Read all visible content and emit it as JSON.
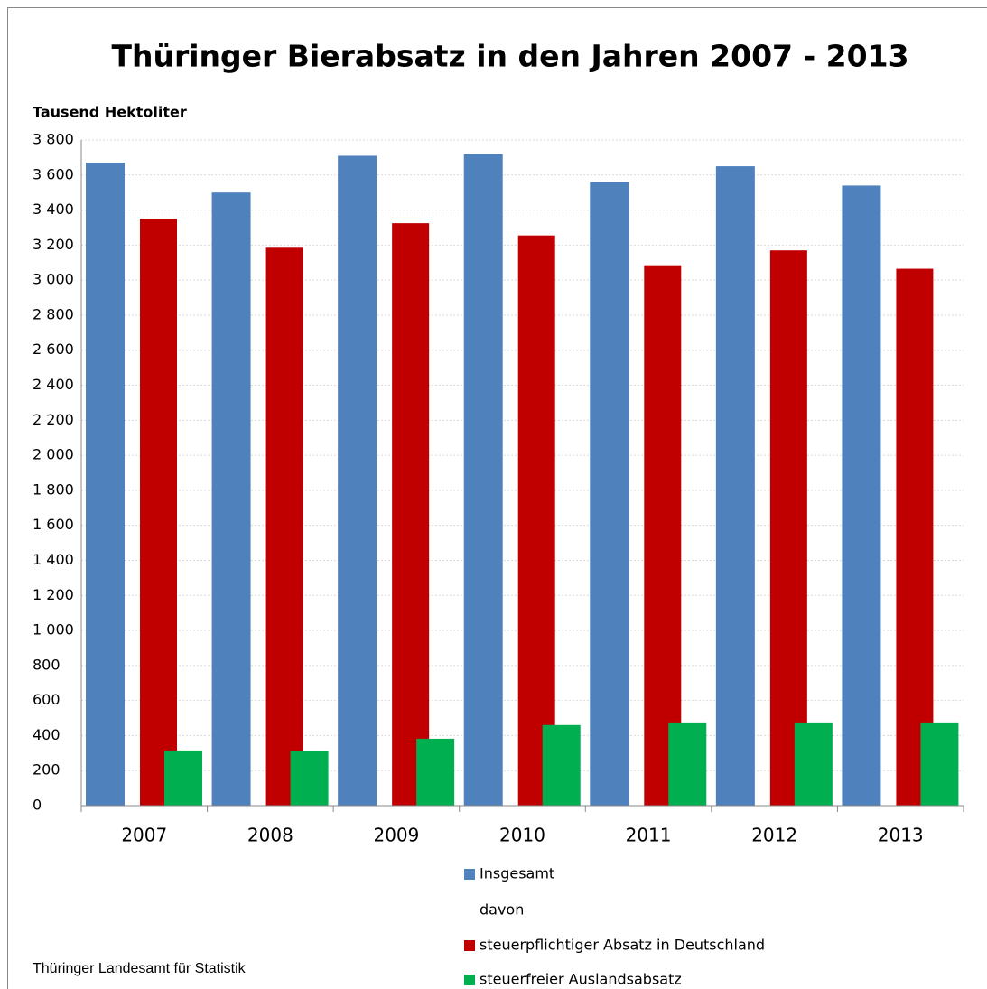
{
  "chart_data": {
    "type": "bar",
    "title": "Thüringer Bierabsatz in den Jahren 2007 - 2013",
    "y_label": "Tausend Hektoliter",
    "source": "Thüringer Landesamt für Statistik",
    "legend_note": "davon",
    "categories": [
      "2007",
      "2008",
      "2009",
      "2010",
      "2011",
      "2012",
      "2013"
    ],
    "series": [
      {
        "name": "Insgesamt",
        "color": "#4f81bd",
        "values": [
          3670,
          3500,
          3710,
          3720,
          3560,
          3650,
          3540
        ]
      },
      {
        "name": "steuerpflichtiger Absatz in Deutschland",
        "color": "#c00000",
        "values": [
          3350,
          3185,
          3325,
          3255,
          3085,
          3170,
          3065
        ]
      },
      {
        "name": "steuerfreier Auslandsabsatz",
        "color": "#00b050",
        "values": [
          315,
          310,
          382,
          460,
          475,
          475,
          475
        ]
      }
    ],
    "ylim": [
      0,
      3800
    ],
    "yticks": [
      0,
      200,
      400,
      600,
      800,
      {
        "value": 1000,
        "label": "1 000"
      },
      {
        "value": 1200,
        "label": "1 200"
      },
      {
        "value": 1400,
        "label": "1 400"
      },
      {
        "value": 1600,
        "label": "1 600"
      },
      {
        "value": 1800,
        "label": "1 800"
      },
      {
        "value": 2000,
        "label": "2 000"
      },
      {
        "value": 2200,
        "label": "2 200"
      },
      {
        "value": 2400,
        "label": "2 400"
      },
      {
        "value": 2600,
        "label": "2 600"
      },
      {
        "value": 2800,
        "label": "2 800"
      },
      {
        "value": 3000,
        "label": "3 000"
      },
      {
        "value": 3200,
        "label": "3 200"
      },
      {
        "value": 3400,
        "label": "3 400"
      },
      {
        "value": 3600,
        "label": "3 600"
      },
      {
        "value": 3800,
        "label": "3 800"
      }
    ],
    "grid": true
  }
}
